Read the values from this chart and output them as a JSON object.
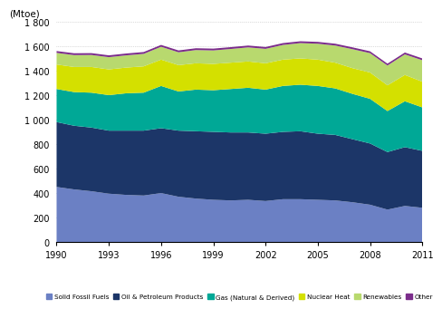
{
  "years": [
    1990,
    1991,
    1992,
    1993,
    1994,
    1995,
    1996,
    1997,
    1998,
    1999,
    2000,
    2001,
    2002,
    2003,
    2004,
    2005,
    2006,
    2007,
    2008,
    2009,
    2010,
    2011
  ],
  "solid_fossil_fuels": [
    450,
    430,
    415,
    395,
    385,
    380,
    400,
    370,
    355,
    345,
    340,
    345,
    335,
    350,
    350,
    345,
    340,
    325,
    305,
    265,
    295,
    280
  ],
  "oil_petroleum": [
    530,
    520,
    520,
    515,
    525,
    530,
    530,
    540,
    550,
    555,
    555,
    550,
    550,
    550,
    555,
    540,
    535,
    515,
    500,
    470,
    480,
    465
  ],
  "gas_natural": [
    270,
    275,
    285,
    290,
    305,
    310,
    345,
    320,
    340,
    340,
    355,
    365,
    360,
    375,
    380,
    390,
    380,
    370,
    365,
    335,
    375,
    355
  ],
  "nuclear_heat": [
    200,
    205,
    210,
    210,
    210,
    215,
    215,
    215,
    215,
    215,
    215,
    215,
    215,
    215,
    215,
    215,
    210,
    210,
    215,
    210,
    215,
    210
  ],
  "renewables": [
    95,
    97,
    98,
    100,
    100,
    102,
    105,
    105,
    108,
    110,
    112,
    115,
    118,
    120,
    125,
    130,
    140,
    155,
    158,
    162,
    168,
    175
  ],
  "other": [
    15,
    15,
    15,
    15,
    15,
    15,
    15,
    15,
    15,
    15,
    15,
    15,
    15,
    15,
    15,
    15,
    15,
    15,
    15,
    15,
    15,
    15
  ],
  "colors": {
    "solid_fossil_fuels": "#6b80c4",
    "oil_petroleum": "#1c3668",
    "gas_natural": "#00a896",
    "nuclear_heat": "#d4e000",
    "renewables": "#b8d96e",
    "other": "#7b2d8b"
  },
  "labels": [
    "Solid Fossil Fuels",
    "Oil & Petroleum Products",
    "Gas (Natural & Derived)",
    "Nuclear Heat",
    "Renewables",
    "Other"
  ],
  "ylabel": "(Mtoe)",
  "ylim": [
    0,
    1800
  ],
  "yticks": [
    0,
    200,
    400,
    600,
    800,
    1000,
    1200,
    1400,
    1600,
    1800
  ],
  "ytick_labels": [
    "0",
    "200",
    "400",
    "600",
    "800",
    "1 000",
    "1 200",
    "1 400",
    "1 600",
    "1 800"
  ],
  "xticks": [
    1990,
    1993,
    1996,
    1999,
    2002,
    2005,
    2008,
    2011
  ]
}
